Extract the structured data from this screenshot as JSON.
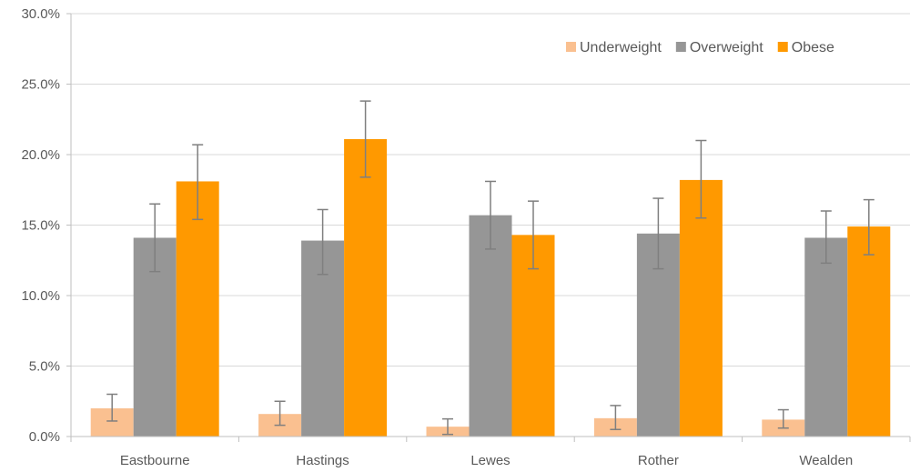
{
  "chart_data": {
    "type": "bar",
    "title": "",
    "xlabel": "",
    "ylabel": "",
    "ylim": [
      0,
      30
    ],
    "yticks": [
      "0.0%",
      "5.0%",
      "10.0%",
      "15.0%",
      "20.0%",
      "25.0%",
      "30.0%"
    ],
    "grid": true,
    "legend_position": "top-right",
    "categories": [
      "Eastbourne",
      "Hastings",
      "Lewes",
      "Rother",
      "Wealden"
    ],
    "series": [
      {
        "name": "Underweight",
        "color": "#fac090",
        "values": [
          2.0,
          1.6,
          0.7,
          1.3,
          1.2
        ],
        "err_low": [
          1.1,
          0.8,
          0.15,
          0.5,
          0.6
        ],
        "err_high": [
          3.0,
          2.5,
          1.25,
          2.2,
          1.9
        ]
      },
      {
        "name": "Overweight",
        "color": "#969696",
        "values": [
          14.1,
          13.9,
          15.7,
          14.4,
          14.1
        ],
        "err_low": [
          11.7,
          11.5,
          13.3,
          11.9,
          12.3
        ],
        "err_high": [
          16.5,
          16.1,
          18.1,
          16.9,
          16.0
        ]
      },
      {
        "name": "Obese",
        "color": "#ff9900",
        "values": [
          18.1,
          21.1,
          14.3,
          18.2,
          14.9
        ],
        "err_low": [
          15.4,
          18.4,
          11.9,
          15.5,
          12.9
        ],
        "err_high": [
          20.7,
          23.8,
          16.7,
          21.0,
          16.8
        ]
      }
    ]
  }
}
